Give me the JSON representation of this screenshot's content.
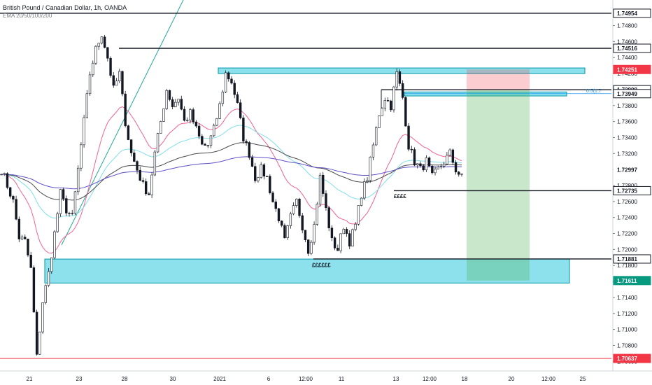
{
  "header": {
    "title": "British Pound / Canadian Dollar, 1h, OANDA",
    "indicator": "EMA 20/50/100/200"
  },
  "chart_data": {
    "type": "candlestick",
    "ylim": [
      1.7048,
      1.7512
    ],
    "y_ticks": [
      "1.74800",
      "1.74600",
      "1.74400",
      "1.74200",
      "1.74000",
      "1.73800",
      "1.73600",
      "1.73400",
      "1.73200",
      "1.73000",
      "1.72800",
      "1.72600",
      "1.72400",
      "1.72200",
      "1.72000",
      "1.71800",
      "1.71600",
      "1.71400",
      "1.71200",
      "1.71000",
      "1.70800",
      "1.70600"
    ],
    "x_ticks": [
      "21",
      "23",
      "28",
      "30",
      "2021",
      "6",
      "12:00",
      "11",
      "13",
      "12:00",
      "18",
      "20",
      "12:00",
      "25"
    ],
    "price_tags": [
      {
        "label": "1.74954",
        "value": 1.74954,
        "style": "outline"
      },
      {
        "label": "1.74516",
        "value": 1.74516,
        "style": "outline"
      },
      {
        "label": "1.74251",
        "value": 1.74251,
        "style": "red"
      },
      {
        "label": "1.73998",
        "value": 1.73998,
        "style": "outline"
      },
      {
        "label": "1.73949",
        "value": 1.73949,
        "style": "outline"
      },
      {
        "label": "1.72997",
        "value": 1.72997,
        "style": "plain"
      },
      {
        "label": "1.72735",
        "value": 1.72735,
        "style": "outline"
      },
      {
        "label": "1.71881",
        "value": 1.71881,
        "style": "outline"
      },
      {
        "label": "1.71611",
        "value": 1.71611,
        "style": "green"
      },
      {
        "label": "1.70637",
        "value": 1.70637,
        "style": "red"
      }
    ],
    "annotations": [
      {
        "text": "££££",
        "x_tick": "13",
        "value": 1.7272
      },
      {
        "text": "££££££",
        "x_tick": "12:00",
        "value": 1.7186
      }
    ],
    "fib_label": "0.5(1.7",
    "key_levels": [
      1.74954,
      1.74516,
      1.73998,
      1.72735,
      1.71881,
      1.70637
    ],
    "zones": [
      {
        "name": "supply-zone-upper",
        "from": 1.7427,
        "to": 1.742
      },
      {
        "name": "supply-zone-fib",
        "from": 1.7397,
        "to": 1.7392
      },
      {
        "name": "demand-zone",
        "from": 1.7188,
        "to": 1.7158
      }
    ],
    "position": {
      "entry": 1.73998,
      "stop": 1.74251,
      "target": 1.71611
    },
    "swing_points": [
      [
        0,
        1.73
      ],
      [
        4,
        1.726
      ],
      [
        6,
        1.7215
      ],
      [
        8,
        1.721
      ],
      [
        10,
        1.7175
      ],
      [
        12,
        1.7065
      ],
      [
        14,
        1.7135
      ],
      [
        16,
        1.717
      ],
      [
        18,
        1.722
      ],
      [
        20,
        1.727
      ],
      [
        22,
        1.725
      ],
      [
        24,
        1.724
      ],
      [
        26,
        1.73
      ],
      [
        28,
        1.736
      ],
      [
        30,
        1.742
      ],
      [
        32,
        1.745
      ],
      [
        34,
        1.747
      ],
      [
        36,
        1.744
      ],
      [
        38,
        1.74
      ],
      [
        40,
        1.742
      ],
      [
        42,
        1.736
      ],
      [
        44,
        1.732
      ],
      [
        46,
        1.73
      ],
      [
        48,
        1.728
      ],
      [
        50,
        1.727
      ],
      [
        52,
        1.732
      ],
      [
        54,
        1.736
      ],
      [
        56,
        1.74
      ],
      [
        58,
        1.738
      ],
      [
        60,
        1.739
      ],
      [
        62,
        1.736
      ],
      [
        64,
        1.737
      ],
      [
        66,
        1.735
      ],
      [
        68,
        1.733
      ],
      [
        70,
        1.733
      ],
      [
        72,
        1.735
      ],
      [
        74,
        1.738
      ],
      [
        76,
        1.742
      ],
      [
        78,
        1.741
      ],
      [
        80,
        1.738
      ],
      [
        82,
        1.734
      ],
      [
        84,
        1.732
      ],
      [
        86,
        1.729
      ],
      [
        88,
        1.73
      ],
      [
        90,
        1.729
      ],
      [
        92,
        1.726
      ],
      [
        94,
        1.724
      ],
      [
        96,
        1.721
      ],
      [
        98,
        1.724
      ],
      [
        100,
        1.726
      ],
      [
        102,
        1.723
      ],
      [
        104,
        1.72
      ],
      [
        106,
        1.723
      ],
      [
        108,
        1.729
      ],
      [
        110,
        1.725
      ],
      [
        112,
        1.721
      ],
      [
        114,
        1.72
      ],
      [
        116,
        1.723
      ],
      [
        118,
        1.721
      ],
      [
        120,
        1.723
      ],
      [
        122,
        1.727
      ],
      [
        124,
        1.729
      ],
      [
        126,
        1.733
      ],
      [
        128,
        1.737
      ],
      [
        130,
        1.739
      ],
      [
        132,
        1.738
      ],
      [
        134,
        1.742
      ],
      [
        136,
        1.739
      ],
      [
        138,
        1.733
      ],
      [
        140,
        1.731
      ],
      [
        142,
        1.73
      ],
      [
        144,
        1.731
      ],
      [
        146,
        1.729
      ],
      [
        148,
        1.73
      ],
      [
        150,
        1.731
      ],
      [
        152,
        1.732
      ],
      [
        154,
        1.73
      ],
      [
        156,
        1.729
      ]
    ]
  }
}
